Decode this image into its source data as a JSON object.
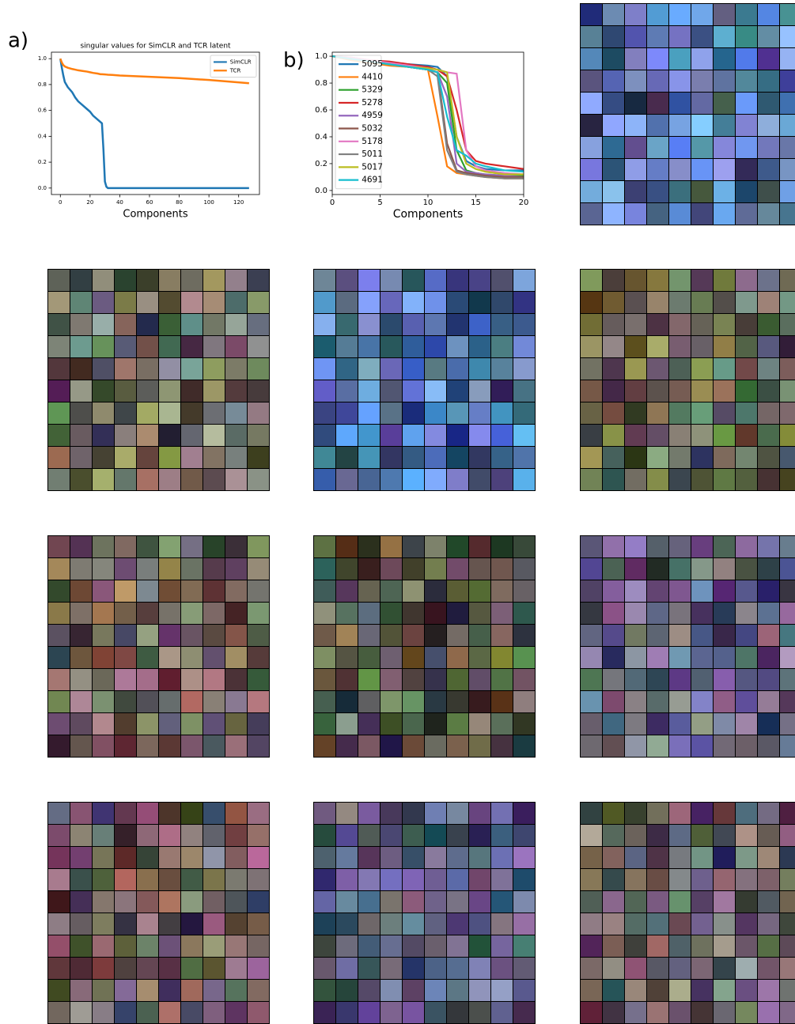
{
  "chart_data": [
    {
      "type": "line",
      "panel_label": "a)",
      "title": "singular values for SimCLR and TCR latent",
      "x_label": "Components",
      "x": [
        0,
        1,
        2,
        3,
        5,
        8,
        10,
        12,
        15,
        18,
        20,
        22,
        25,
        27,
        28,
        29,
        30,
        31,
        32,
        35,
        40,
        60,
        80,
        100,
        127
      ],
      "series": [
        {
          "name": "SimCLR",
          "color": "#1f77b4",
          "values": [
            1.0,
            0.93,
            0.87,
            0.82,
            0.78,
            0.74,
            0.7,
            0.67,
            0.64,
            0.61,
            0.59,
            0.56,
            0.53,
            0.51,
            0.5,
            0.3,
            0.05,
            0.01,
            0,
            0,
            0,
            0,
            0,
            0,
            0
          ]
        },
        {
          "name": "TCR",
          "color": "#ff7f0e",
          "values": [
            1.0,
            0.97,
            0.95,
            0.94,
            0.93,
            0.92,
            0.915,
            0.91,
            0.905,
            0.9,
            0.895,
            0.89,
            0.885,
            0.88,
            0.88,
            0.879,
            0.878,
            0.877,
            0.876,
            0.874,
            0.87,
            0.86,
            0.85,
            0.835,
            0.81
          ]
        }
      ],
      "xlim": [
        -6,
        134
      ],
      "xticks": [
        0,
        20,
        40,
        60,
        80,
        100,
        120
      ],
      "ylim": [
        -0.05,
        1.05
      ],
      "yticks": [
        {
          "value": 0,
          "label": "0.0"
        },
        0.2,
        0.4,
        0.6,
        0.8,
        {
          "value": 1,
          "label": "1.0"
        }
      ],
      "legend": "upper-right"
    },
    {
      "type": "line",
      "panel_label": "b)",
      "x_label": "Components",
      "x": [
        0,
        2,
        4,
        6,
        8,
        10,
        11,
        12,
        13,
        14,
        15,
        16,
        18,
        20
      ],
      "series": [
        {
          "name": "5095",
          "color": "#1f77b4",
          "values": [
            1.0,
            0.98,
            0.96,
            0.95,
            0.94,
            0.93,
            0.92,
            0.85,
            0.4,
            0.22,
            0.18,
            0.16,
            0.15,
            0.15
          ]
        },
        {
          "name": "4410",
          "color": "#ff7f0e",
          "values": [
            1.0,
            0.97,
            0.95,
            0.93,
            0.92,
            0.9,
            0.55,
            0.18,
            0.13,
            0.12,
            0.11,
            0.1,
            0.09,
            0.09
          ]
        },
        {
          "name": "5329",
          "color": "#2ca02c",
          "values": [
            1.0,
            0.98,
            0.96,
            0.94,
            0.92,
            0.9,
            0.88,
            0.8,
            0.3,
            0.15,
            0.13,
            0.12,
            0.11,
            0.11
          ]
        },
        {
          "name": "5278",
          "color": "#d62728",
          "values": [
            1.0,
            0.99,
            0.97,
            0.96,
            0.94,
            0.92,
            0.9,
            0.85,
            0.6,
            0.3,
            0.22,
            0.2,
            0.18,
            0.16
          ]
        },
        {
          "name": "4959",
          "color": "#9467bd",
          "values": [
            1.0,
            0.98,
            0.96,
            0.94,
            0.92,
            0.9,
            0.88,
            0.7,
            0.2,
            0.14,
            0.13,
            0.12,
            0.11,
            0.1
          ]
        },
        {
          "name": "5032",
          "color": "#8c564b",
          "values": [
            1.0,
            0.98,
            0.96,
            0.94,
            0.92,
            0.9,
            0.88,
            0.35,
            0.15,
            0.13,
            0.12,
            0.11,
            0.1,
            0.1
          ]
        },
        {
          "name": "5178",
          "color": "#e377c2",
          "values": [
            1.0,
            0.99,
            0.97,
            0.95,
            0.93,
            0.91,
            0.9,
            0.88,
            0.87,
            0.3,
            0.18,
            0.15,
            0.13,
            0.12
          ]
        },
        {
          "name": "5011",
          "color": "#7f7f7f",
          "values": [
            1.0,
            0.98,
            0.96,
            0.94,
            0.92,
            0.9,
            0.85,
            0.3,
            0.14,
            0.12,
            0.11,
            0.1,
            0.09,
            0.09
          ]
        },
        {
          "name": "5017",
          "color": "#bcbd22",
          "values": [
            1.0,
            0.98,
            0.96,
            0.94,
            0.92,
            0.91,
            0.9,
            0.88,
            0.4,
            0.2,
            0.16,
            0.14,
            0.12,
            0.12
          ]
        },
        {
          "name": "4691",
          "color": "#17becf",
          "values": [
            1.0,
            0.98,
            0.96,
            0.94,
            0.92,
            0.9,
            0.88,
            0.55,
            0.3,
            0.26,
            0.2,
            0.18,
            0.15,
            0.14
          ]
        }
      ],
      "xlim": [
        0,
        20
      ],
      "xticks": [
        0,
        5,
        10,
        15,
        20
      ],
      "ylim": [
        -0.03,
        1.03
      ],
      "yticks": [
        {
          "value": 0,
          "label": "0.0"
        },
        0.2,
        0.4,
        0.6,
        0.8,
        {
          "value": 1,
          "label": "1.0"
        }
      ],
      "legend": "upper-left"
    }
  ]
}
